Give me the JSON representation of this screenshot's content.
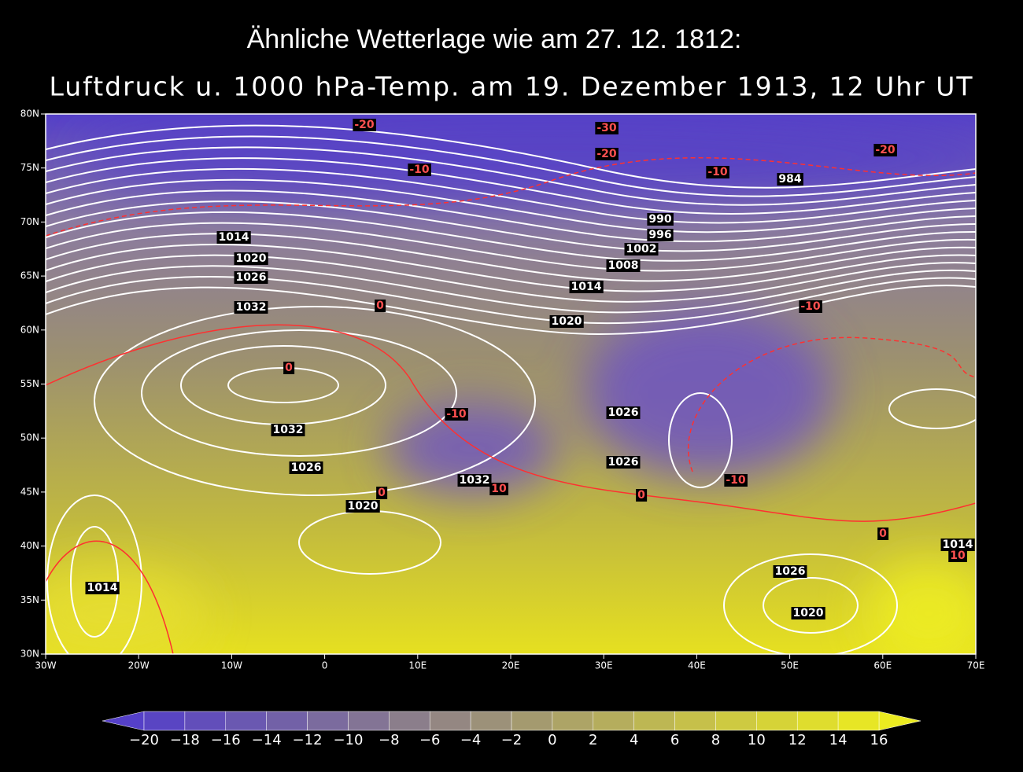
{
  "header": {
    "title": "Ähnliche Wetterlage wie am 27. 12. 1812:",
    "subtitle": "Luftdruck u. 1000 hPa-Temp. am 19. Dezember 1913, 12 Uhr UT"
  },
  "map": {
    "lat_ticks": [
      "80N",
      "75N",
      "70N",
      "65N",
      "60N",
      "55N",
      "50N",
      "45N",
      "40N",
      "35N",
      "30N"
    ],
    "lon_ticks": [
      "30W",
      "20W",
      "10W",
      "0",
      "10E",
      "20E",
      "30E",
      "40E",
      "50E",
      "60E",
      "70E"
    ],
    "isobar_labels": [
      "1014",
      "1020",
      "1026",
      "1032",
      "990",
      "996",
      "1002",
      "1008",
      "1014",
      "1020",
      "984",
      "1026",
      "1032",
      "1026",
      "1026",
      "1032",
      "1020",
      "1014",
      "1014",
      "1026",
      "1020"
    ],
    "isotherm_labels": [
      "-20",
      "-30",
      "-20",
      "-20",
      "-10",
      "-10",
      "0",
      "-10",
      "0",
      "-10",
      "10",
      "-10",
      "0",
      "0",
      "0",
      "10"
    ]
  },
  "colorbar": {
    "labels": [
      "−20",
      "−18",
      "−16",
      "−14",
      "−12",
      "−10",
      "−8",
      "−6",
      "−4",
      "−2",
      "0",
      "2",
      "4",
      "6",
      "8",
      "10",
      "12",
      "14",
      "16"
    ]
  }
}
